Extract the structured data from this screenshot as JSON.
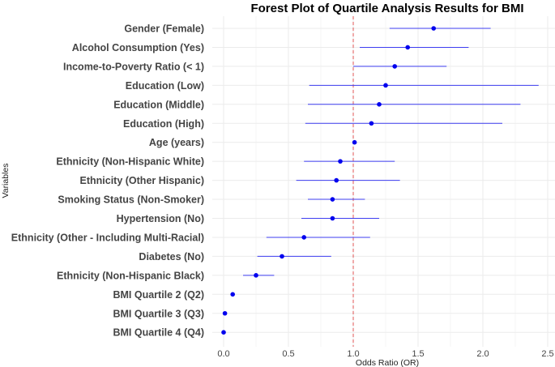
{
  "chart_data": {
    "type": "forest",
    "title": "Forest Plot of Quartile Analysis Results for BMI",
    "xlabel": "Odds Ratio (OR)",
    "ylabel": "Variables",
    "xlim": [
      -0.1,
      2.55
    ],
    "xticks": [
      0.0,
      0.5,
      1.0,
      1.5,
      2.0,
      2.5
    ],
    "xtick_labels": [
      "0.0",
      "0.5",
      "1.0",
      "1.5",
      "2.0",
      "2.5"
    ],
    "reference_line": 1.0,
    "colors": {
      "point": "#0000ee",
      "ci": "#3d3df0",
      "reference": "#e05555",
      "grid": "#ebebeb"
    },
    "rows": [
      {
        "label": "Gender (Female)",
        "or": 1.62,
        "lower": 1.28,
        "upper": 2.06
      },
      {
        "label": "Alcohol Consumption (Yes)",
        "or": 1.42,
        "lower": 1.05,
        "upper": 1.89
      },
      {
        "label": "Income-to-Poverty Ratio (< 1)",
        "or": 1.32,
        "lower": 1.0,
        "upper": 1.72
      },
      {
        "label": "Education (Low)",
        "or": 1.25,
        "lower": 0.66,
        "upper": 2.43
      },
      {
        "label": "Education (Middle)",
        "or": 1.2,
        "lower": 0.65,
        "upper": 2.29
      },
      {
        "label": "Education (High)",
        "or": 1.14,
        "lower": 0.63,
        "upper": 2.15
      },
      {
        "label": "Age (years)",
        "or": 1.01,
        "lower": 1.0,
        "upper": 1.02
      },
      {
        "label": "Ethnicity (Non-Hispanic White)",
        "or": 0.9,
        "lower": 0.62,
        "upper": 1.32
      },
      {
        "label": "Ethnicity (Other Hispanic)",
        "or": 0.87,
        "lower": 0.56,
        "upper": 1.36
      },
      {
        "label": "Smoking Status (Non-Smoker)",
        "or": 0.84,
        "lower": 0.65,
        "upper": 1.09
      },
      {
        "label": "Hypertension (No)",
        "or": 0.84,
        "lower": 0.6,
        "upper": 1.2
      },
      {
        "label": "Ethnicity (Other - Including Multi-Racial)",
        "or": 0.62,
        "lower": 0.33,
        "upper": 1.13
      },
      {
        "label": "Diabetes (No)",
        "or": 0.45,
        "lower": 0.26,
        "upper": 0.83
      },
      {
        "label": "Ethnicity (Non-Hispanic Black)",
        "or": 0.25,
        "lower": 0.15,
        "upper": 0.39
      },
      {
        "label": "BMI Quartile 2 (Q2)",
        "or": 0.07,
        "lower": 0.06,
        "upper": 0.08
      },
      {
        "label": "BMI Quartile 3 (Q3)",
        "or": 0.01,
        "lower": 0.01,
        "upper": 0.02
      },
      {
        "label": "BMI Quartile 4 (Q4)",
        "or": 0.0,
        "lower": 0.0,
        "upper": 0.01
      }
    ]
  }
}
